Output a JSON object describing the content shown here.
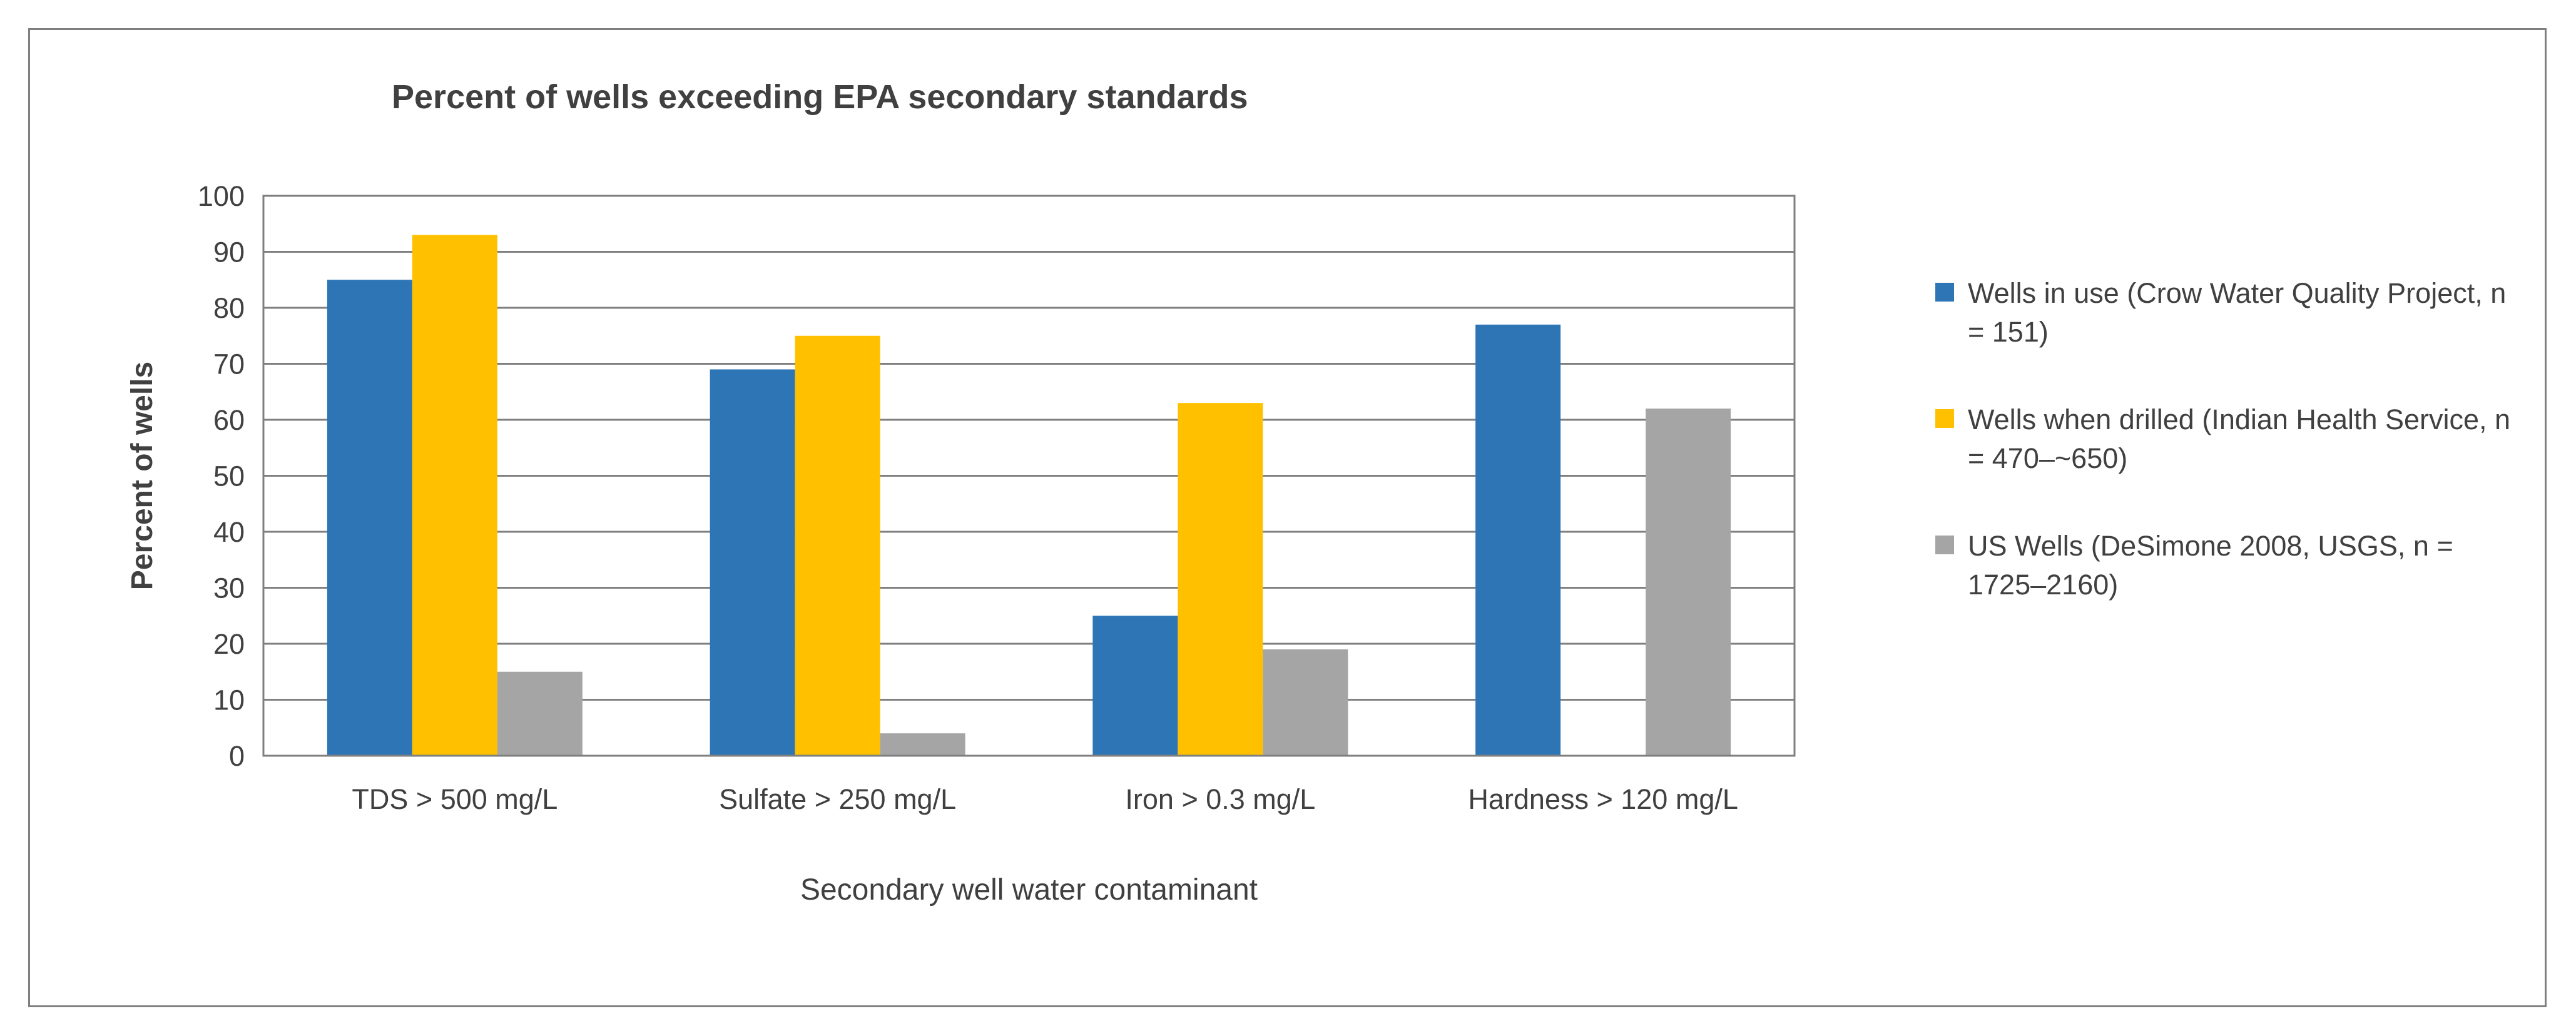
{
  "chart_data": {
    "type": "bar",
    "title": "Percent of wells exceeding EPA secondary standards",
    "xlabel": "Secondary well water contaminant",
    "ylabel": "Percent of wells",
    "ylim": [
      0,
      100
    ],
    "yticks": [
      "0",
      "10",
      "20",
      "30",
      "40",
      "50",
      "60",
      "70",
      "80",
      "90",
      "100"
    ],
    "grid": true,
    "legend_position": "right",
    "categories": [
      "TDS > 500 mg/L",
      "Sulfate > 250 mg/L",
      "Iron > 0.3 mg/L",
      "Hardness > 120 mg/L"
    ],
    "series": [
      {
        "name": "Wells in use (Crow Water Quality Project, n = 151)",
        "color": "#2e75b6",
        "values": [
          85,
          69,
          25,
          77
        ]
      },
      {
        "name": "Wells when drilled (Indian Health Service, n = 470–~650)",
        "color": "#ffc000",
        "values": [
          93,
          75,
          63,
          null
        ]
      },
      {
        "name": "US Wells (DeSimone 2008, USGS, n = 1725–2160)",
        "color": "#a5a5a5",
        "values": [
          15,
          4,
          19,
          62
        ]
      }
    ]
  }
}
